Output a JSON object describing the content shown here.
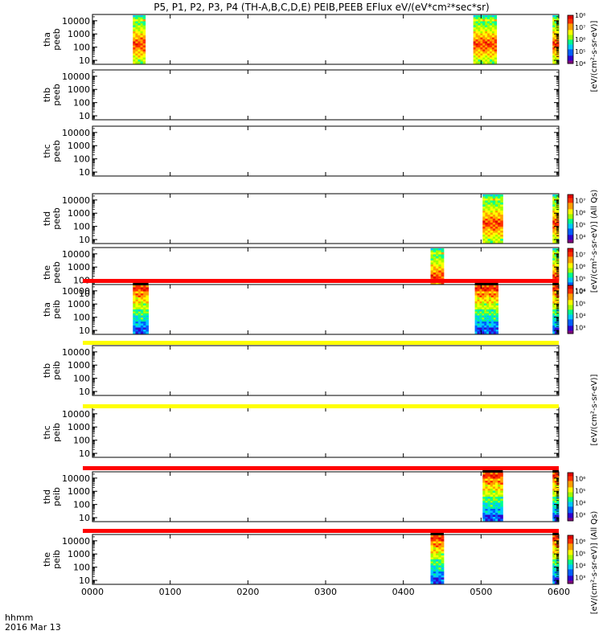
{
  "chart_data": {
    "type": "heatmap",
    "title": "P5, P1, P2, P3, P4 (TH-A,B,C,D,E) PEIB,PEEB EFlux eV/(eV*cm²*sec*sr)",
    "x_axis": {
      "label_line1": "hhmm",
      "label_line2": "2016 Mar 13",
      "ticks": [
        "0000",
        "0100",
        "0200",
        "0300",
        "0400",
        "0500",
        "0600"
      ],
      "range_hours": [
        0,
        6
      ]
    },
    "y_axis": {
      "scale": "log",
      "ticks": [
        "10",
        "100",
        "1000",
        "10000"
      ],
      "range": [
        5,
        30000
      ]
    },
    "colorbar_unit": "[eV/(cm²-s-sr-eV)]",
    "colorbar_unit_alt": "[eV/(cm²-s-sr-eV)] (All Qs)",
    "colormap": [
      "#800080",
      "#3000d0",
      "#0060ff",
      "#00c8ff",
      "#00ff90",
      "#a0ff00",
      "#ffff00",
      "#ffa000",
      "#ff3000",
      "#e00000"
    ],
    "series": [
      {
        "probe": "tha",
        "instrument": "peeb",
        "cbar_ticks": [
          "10⁴",
          "10⁵",
          "10⁶",
          "10⁷",
          "10⁸"
        ],
        "cbar_range": [
          4,
          8
        ],
        "bursts": [
          {
            "start": 0.52,
            "end": 0.68
          },
          {
            "start": 4.9,
            "end": 5.2
          },
          {
            "start": 5.92,
            "end": 6.0
          }
        ]
      },
      {
        "probe": "thb",
        "instrument": "peeb",
        "cbar_ticks": [],
        "bursts": []
      },
      {
        "probe": "thc",
        "instrument": "peeb",
        "cbar_ticks": [],
        "bursts": []
      },
      {
        "probe": "thd",
        "instrument": "peeb",
        "cbar_ticks": [
          "10⁴",
          "10⁵",
          "10⁶",
          "10⁷"
        ],
        "cbar_range": [
          3.5,
          7.5
        ],
        "bursts": [
          {
            "start": 5.02,
            "end": 5.28
          },
          {
            "start": 5.92,
            "end": 6.0
          }
        ]
      },
      {
        "probe": "the",
        "instrument": "peeb",
        "cbar_ticks": [
          "10⁴",
          "10⁵",
          "10⁶",
          "10⁷"
        ],
        "cbar_range": [
          3.5,
          7.5
        ],
        "bursts": [
          {
            "start": 4.35,
            "end": 4.52
          },
          {
            "start": 5.92,
            "end": 6.0
          }
        ]
      },
      {
        "probe": "tha",
        "instrument": "peib",
        "cbar_ticks": [
          "10³",
          "10⁴",
          "10⁵",
          "10⁶"
        ],
        "cbar_range": [
          2.5,
          6.5
        ],
        "bursts": [
          {
            "start": 0.52,
            "end": 0.72
          },
          {
            "start": 4.92,
            "end": 5.22
          },
          {
            "start": 5.92,
            "end": 6.0
          }
        ]
      },
      {
        "probe": "thb",
        "instrument": "peib",
        "cbar_ticks": [],
        "bursts": []
      },
      {
        "probe": "thc",
        "instrument": "peib",
        "cbar_ticks": [],
        "bursts": []
      },
      {
        "probe": "thd",
        "instrument": "peib",
        "cbar_ticks": [
          "10³",
          "10⁴",
          "10⁵",
          "10⁶"
        ],
        "cbar_range": [
          2.5,
          6.5
        ],
        "bursts": [
          {
            "start": 5.02,
            "end": 5.28
          },
          {
            "start": 5.92,
            "end": 6.0
          }
        ]
      },
      {
        "probe": "the",
        "instrument": "peib",
        "cbar_ticks": [
          "10³",
          "10⁴",
          "10⁵",
          "10⁶"
        ],
        "cbar_range": [
          2.5,
          6.5
        ],
        "bursts": [
          {
            "start": 4.35,
            "end": 4.52
          },
          {
            "start": 5.92,
            "end": 6.0
          }
        ]
      }
    ],
    "status_bars": [
      {
        "after_panel": 4,
        "color": "#ff0000"
      },
      {
        "after_panel": 5,
        "color": "#ffff00"
      },
      {
        "after_panel": 6,
        "color": "#ffff00"
      },
      {
        "after_panel": 7,
        "color": "#ff0000"
      },
      {
        "after_panel": 8,
        "color": "#ff0000"
      }
    ]
  }
}
